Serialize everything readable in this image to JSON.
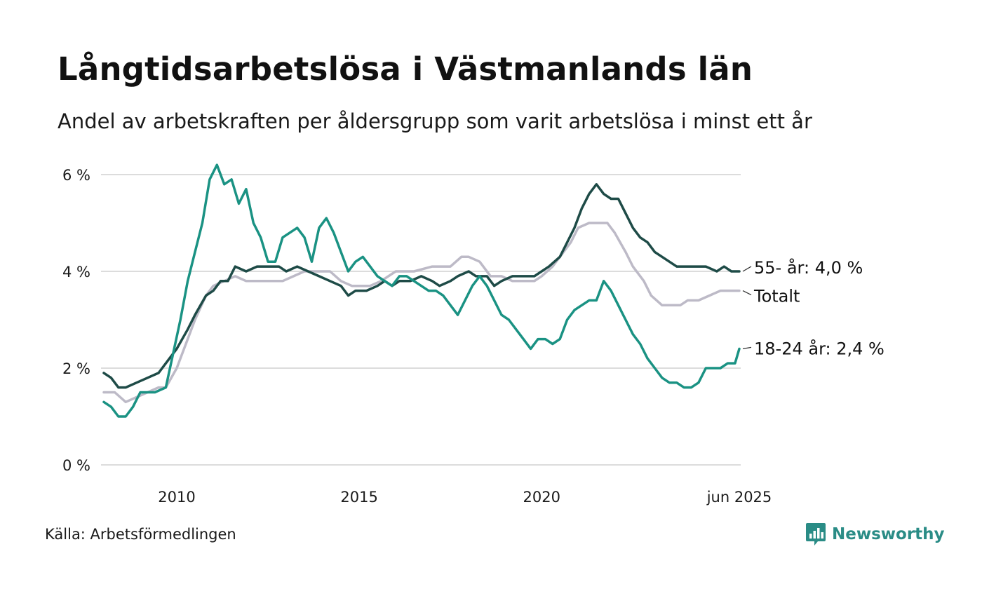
{
  "title": "Långtidsarbetslösa i Västmanlands län",
  "subtitle": "Andel av arbetskraften per åldersgrupp som varit arbetslösa i minst ett år",
  "source": "Källa: Arbetsförmedlingen",
  "brand": {
    "name": "Newsworthy",
    "icon": "newsworthy-logo-icon",
    "color": "#2a8c86"
  },
  "chart_data": {
    "type": "line",
    "ylim": [
      0,
      6
    ],
    "yticks": [
      0,
      2,
      4,
      6
    ],
    "ytick_labels": [
      "0 %",
      "2 %",
      "4 %",
      "6 %"
    ],
    "xlim": [
      2008.0,
      2025.4167
    ],
    "xticks": [
      2010,
      2015,
      2020,
      2025.4167
    ],
    "xtick_labels": [
      "2010",
      "2015",
      "2020",
      "jun 2025"
    ],
    "grid": true,
    "legend": "direct labels at line ends (right)",
    "series": [
      {
        "name": "Totalt",
        "end_label": "Totalt",
        "color": "#bdbac7",
        "points": [
          [
            2008.0,
            1.5
          ],
          [
            2008.3,
            1.5
          ],
          [
            2008.6,
            1.3
          ],
          [
            2008.9,
            1.4
          ],
          [
            2009.2,
            1.5
          ],
          [
            2009.5,
            1.6
          ],
          [
            2009.7,
            1.6
          ],
          [
            2010.0,
            2.0
          ],
          [
            2010.3,
            2.6
          ],
          [
            2010.5,
            3.0
          ],
          [
            2010.8,
            3.5
          ],
          [
            2011.0,
            3.7
          ],
          [
            2011.3,
            3.8
          ],
          [
            2011.6,
            3.9
          ],
          [
            2011.9,
            3.8
          ],
          [
            2012.2,
            3.8
          ],
          [
            2012.6,
            3.8
          ],
          [
            2012.9,
            3.8
          ],
          [
            2013.2,
            3.9
          ],
          [
            2013.5,
            4.0
          ],
          [
            2013.9,
            4.0
          ],
          [
            2014.2,
            4.0
          ],
          [
            2014.5,
            3.8
          ],
          [
            2014.8,
            3.7
          ],
          [
            2015.0,
            3.7
          ],
          [
            2015.3,
            3.7
          ],
          [
            2015.6,
            3.8
          ],
          [
            2016.0,
            4.0
          ],
          [
            2016.5,
            4.0
          ],
          [
            2017.0,
            4.1
          ],
          [
            2017.5,
            4.1
          ],
          [
            2017.8,
            4.3
          ],
          [
            2018.0,
            4.3
          ],
          [
            2018.3,
            4.2
          ],
          [
            2018.6,
            3.9
          ],
          [
            2018.9,
            3.9
          ],
          [
            2019.2,
            3.8
          ],
          [
            2019.5,
            3.8
          ],
          [
            2019.8,
            3.8
          ],
          [
            2020.0,
            3.9
          ],
          [
            2020.3,
            4.1
          ],
          [
            2020.5,
            4.3
          ],
          [
            2020.8,
            4.6
          ],
          [
            2021.0,
            4.9
          ],
          [
            2021.3,
            5.0
          ],
          [
            2021.6,
            5.0
          ],
          [
            2021.8,
            5.0
          ],
          [
            2022.0,
            4.8
          ],
          [
            2022.3,
            4.4
          ],
          [
            2022.5,
            4.1
          ],
          [
            2022.8,
            3.8
          ],
          [
            2023.0,
            3.5
          ],
          [
            2023.3,
            3.3
          ],
          [
            2023.6,
            3.3
          ],
          [
            2023.8,
            3.3
          ],
          [
            2024.0,
            3.4
          ],
          [
            2024.3,
            3.4
          ],
          [
            2024.6,
            3.5
          ],
          [
            2024.9,
            3.6
          ],
          [
            2025.2,
            3.6
          ],
          [
            2025.4167,
            3.6
          ]
        ]
      },
      {
        "name": "55- år",
        "end_label": "55- år: 4,0 %",
        "color": "#1e4b47",
        "points": [
          [
            2008.0,
            1.9
          ],
          [
            2008.2,
            1.8
          ],
          [
            2008.4,
            1.6
          ],
          [
            2008.6,
            1.6
          ],
          [
            2008.9,
            1.7
          ],
          [
            2009.2,
            1.8
          ],
          [
            2009.5,
            1.9
          ],
          [
            2009.8,
            2.2
          ],
          [
            2010.0,
            2.4
          ],
          [
            2010.3,
            2.8
          ],
          [
            2010.5,
            3.1
          ],
          [
            2010.8,
            3.5
          ],
          [
            2011.0,
            3.6
          ],
          [
            2011.2,
            3.8
          ],
          [
            2011.4,
            3.8
          ],
          [
            2011.6,
            4.1
          ],
          [
            2011.9,
            4.0
          ],
          [
            2012.2,
            4.1
          ],
          [
            2012.5,
            4.1
          ],
          [
            2012.8,
            4.1
          ],
          [
            2013.0,
            4.0
          ],
          [
            2013.3,
            4.1
          ],
          [
            2013.6,
            4.0
          ],
          [
            2013.9,
            3.9
          ],
          [
            2014.2,
            3.8
          ],
          [
            2014.5,
            3.7
          ],
          [
            2014.7,
            3.5
          ],
          [
            2014.9,
            3.6
          ],
          [
            2015.2,
            3.6
          ],
          [
            2015.5,
            3.7
          ],
          [
            2015.7,
            3.8
          ],
          [
            2015.9,
            3.7
          ],
          [
            2016.1,
            3.8
          ],
          [
            2016.4,
            3.8
          ],
          [
            2016.7,
            3.9
          ],
          [
            2017.0,
            3.8
          ],
          [
            2017.2,
            3.7
          ],
          [
            2017.5,
            3.8
          ],
          [
            2017.7,
            3.9
          ],
          [
            2018.0,
            4.0
          ],
          [
            2018.2,
            3.9
          ],
          [
            2018.5,
            3.9
          ],
          [
            2018.7,
            3.7
          ],
          [
            2018.9,
            3.8
          ],
          [
            2019.2,
            3.9
          ],
          [
            2019.5,
            3.9
          ],
          [
            2019.8,
            3.9
          ],
          [
            2020.0,
            4.0
          ],
          [
            2020.2,
            4.1
          ],
          [
            2020.5,
            4.3
          ],
          [
            2020.7,
            4.6
          ],
          [
            2020.9,
            4.9
          ],
          [
            2021.1,
            5.3
          ],
          [
            2021.3,
            5.6
          ],
          [
            2021.5,
            5.8
          ],
          [
            2021.7,
            5.6
          ],
          [
            2021.9,
            5.5
          ],
          [
            2022.1,
            5.5
          ],
          [
            2022.3,
            5.2
          ],
          [
            2022.5,
            4.9
          ],
          [
            2022.7,
            4.7
          ],
          [
            2022.9,
            4.6
          ],
          [
            2023.1,
            4.4
          ],
          [
            2023.3,
            4.3
          ],
          [
            2023.5,
            4.2
          ],
          [
            2023.7,
            4.1
          ],
          [
            2023.9,
            4.1
          ],
          [
            2024.2,
            4.1
          ],
          [
            2024.5,
            4.1
          ],
          [
            2024.8,
            4.0
          ],
          [
            2025.0,
            4.1
          ],
          [
            2025.2,
            4.0
          ],
          [
            2025.4167,
            4.0
          ]
        ]
      },
      {
        "name": "18-24 år",
        "end_label": "18-24 år: 2,4 %",
        "color": "#1a9283",
        "points": [
          [
            2008.0,
            1.3
          ],
          [
            2008.2,
            1.2
          ],
          [
            2008.4,
            1.0
          ],
          [
            2008.6,
            1.0
          ],
          [
            2008.8,
            1.2
          ],
          [
            2009.0,
            1.5
          ],
          [
            2009.2,
            1.5
          ],
          [
            2009.4,
            1.5
          ],
          [
            2009.7,
            1.6
          ],
          [
            2009.9,
            2.3
          ],
          [
            2010.1,
            3.0
          ],
          [
            2010.3,
            3.8
          ],
          [
            2010.5,
            4.4
          ],
          [
            2010.7,
            5.0
          ],
          [
            2010.9,
            5.9
          ],
          [
            2011.1,
            6.2
          ],
          [
            2011.3,
            5.8
          ],
          [
            2011.5,
            5.9
          ],
          [
            2011.7,
            5.4
          ],
          [
            2011.9,
            5.7
          ],
          [
            2012.1,
            5.0
          ],
          [
            2012.3,
            4.7
          ],
          [
            2012.5,
            4.2
          ],
          [
            2012.7,
            4.2
          ],
          [
            2012.9,
            4.7
          ],
          [
            2013.1,
            4.8
          ],
          [
            2013.3,
            4.9
          ],
          [
            2013.5,
            4.7
          ],
          [
            2013.7,
            4.2
          ],
          [
            2013.9,
            4.9
          ],
          [
            2014.1,
            5.1
          ],
          [
            2014.3,
            4.8
          ],
          [
            2014.5,
            4.4
          ],
          [
            2014.7,
            4.0
          ],
          [
            2014.9,
            4.2
          ],
          [
            2015.1,
            4.3
          ],
          [
            2015.3,
            4.1
          ],
          [
            2015.5,
            3.9
          ],
          [
            2015.7,
            3.8
          ],
          [
            2015.9,
            3.7
          ],
          [
            2016.1,
            3.9
          ],
          [
            2016.3,
            3.9
          ],
          [
            2016.5,
            3.8
          ],
          [
            2016.7,
            3.7
          ],
          [
            2016.9,
            3.6
          ],
          [
            2017.1,
            3.6
          ],
          [
            2017.3,
            3.5
          ],
          [
            2017.5,
            3.3
          ],
          [
            2017.7,
            3.1
          ],
          [
            2017.9,
            3.4
          ],
          [
            2018.1,
            3.7
          ],
          [
            2018.3,
            3.9
          ],
          [
            2018.5,
            3.7
          ],
          [
            2018.7,
            3.4
          ],
          [
            2018.9,
            3.1
          ],
          [
            2019.1,
            3.0
          ],
          [
            2019.3,
            2.8
          ],
          [
            2019.5,
            2.6
          ],
          [
            2019.7,
            2.4
          ],
          [
            2019.9,
            2.6
          ],
          [
            2020.1,
            2.6
          ],
          [
            2020.3,
            2.5
          ],
          [
            2020.5,
            2.6
          ],
          [
            2020.7,
            3.0
          ],
          [
            2020.9,
            3.2
          ],
          [
            2021.1,
            3.3
          ],
          [
            2021.3,
            3.4
          ],
          [
            2021.5,
            3.4
          ],
          [
            2021.7,
            3.8
          ],
          [
            2021.9,
            3.6
          ],
          [
            2022.1,
            3.3
          ],
          [
            2022.3,
            3.0
          ],
          [
            2022.5,
            2.7
          ],
          [
            2022.7,
            2.5
          ],
          [
            2022.9,
            2.2
          ],
          [
            2023.1,
            2.0
          ],
          [
            2023.3,
            1.8
          ],
          [
            2023.5,
            1.7
          ],
          [
            2023.7,
            1.7
          ],
          [
            2023.9,
            1.6
          ],
          [
            2024.1,
            1.6
          ],
          [
            2024.3,
            1.7
          ],
          [
            2024.5,
            2.0
          ],
          [
            2024.7,
            2.0
          ],
          [
            2024.9,
            2.0
          ],
          [
            2025.1,
            2.1
          ],
          [
            2025.3,
            2.1
          ],
          [
            2025.4167,
            2.4
          ]
        ]
      }
    ]
  }
}
